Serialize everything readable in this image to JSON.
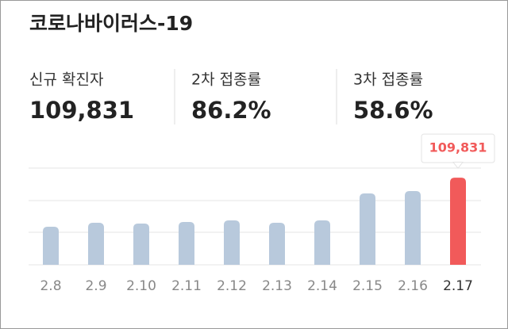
{
  "header": {
    "title": "코로나바이러스-19"
  },
  "stats": [
    {
      "label": "신규 확진자",
      "value": "109,831"
    },
    {
      "label": "2차 접종률",
      "value": "86.2%"
    },
    {
      "label": "3차 접종률",
      "value": "58.6%"
    }
  ],
  "chart": {
    "type": "bar",
    "categories": [
      "2.8",
      "2.9",
      "2.10",
      "2.11",
      "2.12",
      "2.13",
      "2.14",
      "2.15",
      "2.16",
      "2.17"
    ],
    "values": [
      48000,
      53000,
      52000,
      54000,
      56000,
      53000,
      56000,
      90000,
      93000,
      109831
    ],
    "value_labels": [
      null,
      null,
      null,
      null,
      null,
      null,
      null,
      null,
      null,
      "109,831"
    ],
    "ylim": [
      0,
      122000
    ],
    "color": "#b8c9dc",
    "highlight_color": "#f15a5a",
    "highlight_index": 9
  }
}
